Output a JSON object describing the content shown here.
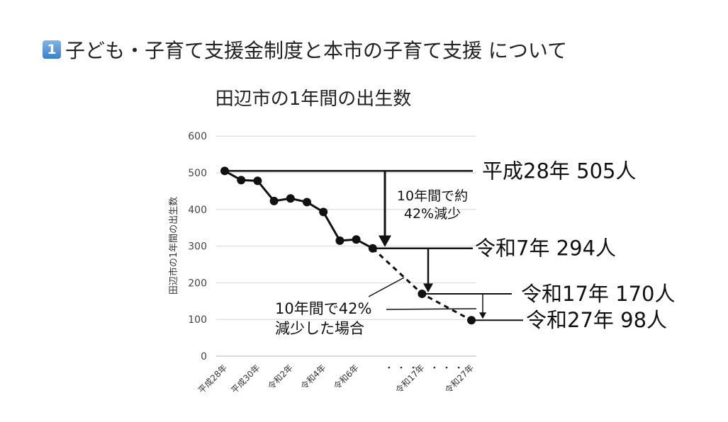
{
  "heading": {
    "badge": "1",
    "text": "子ども・子育て支援金制度と本市の子育て支援 について"
  },
  "chart_data": {
    "type": "line",
    "title": "田辺市の1年間の出生数",
    "ylabel": "田辺市の1年間の出生数",
    "xlabel": "",
    "ylim": [
      0,
      600
    ],
    "yticks": [
      0,
      100,
      200,
      300,
      400,
      500,
      600
    ],
    "grid": true,
    "tick_labels": [
      {
        "label": "平成28年",
        "x": 0
      },
      {
        "label": "平成30年",
        "x": 2
      },
      {
        "label": "令和2年",
        "x": 4
      },
      {
        "label": "令和4年",
        "x": 6
      },
      {
        "label": "令和6年",
        "x": 8
      },
      {
        "label": "令和17年",
        "x": 12
      },
      {
        "label": "令和27年",
        "x": 15
      }
    ],
    "ellipses": [
      "・ ・ ・",
      "・ ・ ・"
    ],
    "series": [
      {
        "style": "solid",
        "x": [
          0,
          1,
          2,
          3,
          4,
          5,
          6,
          7,
          8,
          9
        ],
        "values": [
          505,
          480,
          478,
          423,
          430,
          420,
          393,
          315,
          318,
          294
        ]
      },
      {
        "style": "dashed",
        "x": [
          9,
          12,
          15
        ],
        "values": [
          294,
          170,
          98
        ]
      }
    ],
    "callouts": [
      {
        "text": "平成28年 505人",
        "value": 505
      },
      {
        "text": "令和7年 294人",
        "value": 294
      },
      {
        "text": "令和17年 170人",
        "value": 170
      },
      {
        "text": "令和27年 98人",
        "value": 98
      }
    ],
    "annotations": [
      {
        "lines": [
          "10年間で約",
          "42%減少"
        ]
      },
      {
        "lines": [
          "10年間で42%",
          "減少した場合"
        ]
      }
    ]
  }
}
